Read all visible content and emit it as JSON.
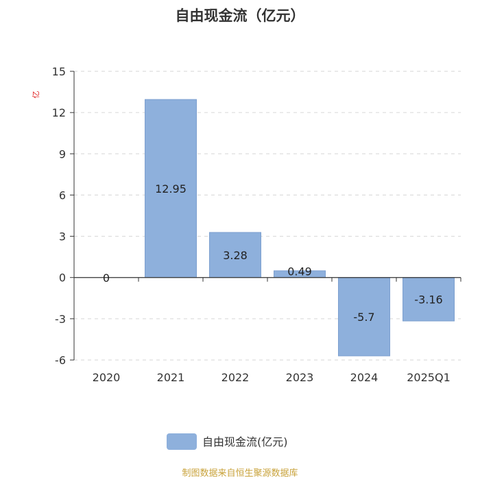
{
  "chart_data": {
    "type": "bar",
    "title": "自由现金流（亿元）",
    "ylabel": "亿",
    "categories": [
      "2020",
      "2021",
      "2022",
      "2023",
      "2024",
      "2025Q1"
    ],
    "series": [
      {
        "name": "自由现金流(亿元)",
        "values": [
          0,
          12.95,
          3.28,
          0.49,
          -5.7,
          -3.16
        ]
      }
    ],
    "data_labels": [
      "0",
      "12.95",
      "3.28",
      "0.49",
      "-5.7",
      "-3.16"
    ],
    "ylim": [
      -6,
      15
    ],
    "yticks": [
      15,
      12,
      9,
      6,
      3,
      0,
      -3,
      -6
    ],
    "grid": true,
    "legend_position": "bottom-center"
  },
  "source": "制图数据来自恒生聚源数据库",
  "colors": {
    "bar": "#8eb0dc",
    "bar_edge": "#7c9fcf",
    "axis": "#333333",
    "grid": "#d6d6d6",
    "unit": "#e02020",
    "source": "#c8a23a"
  }
}
